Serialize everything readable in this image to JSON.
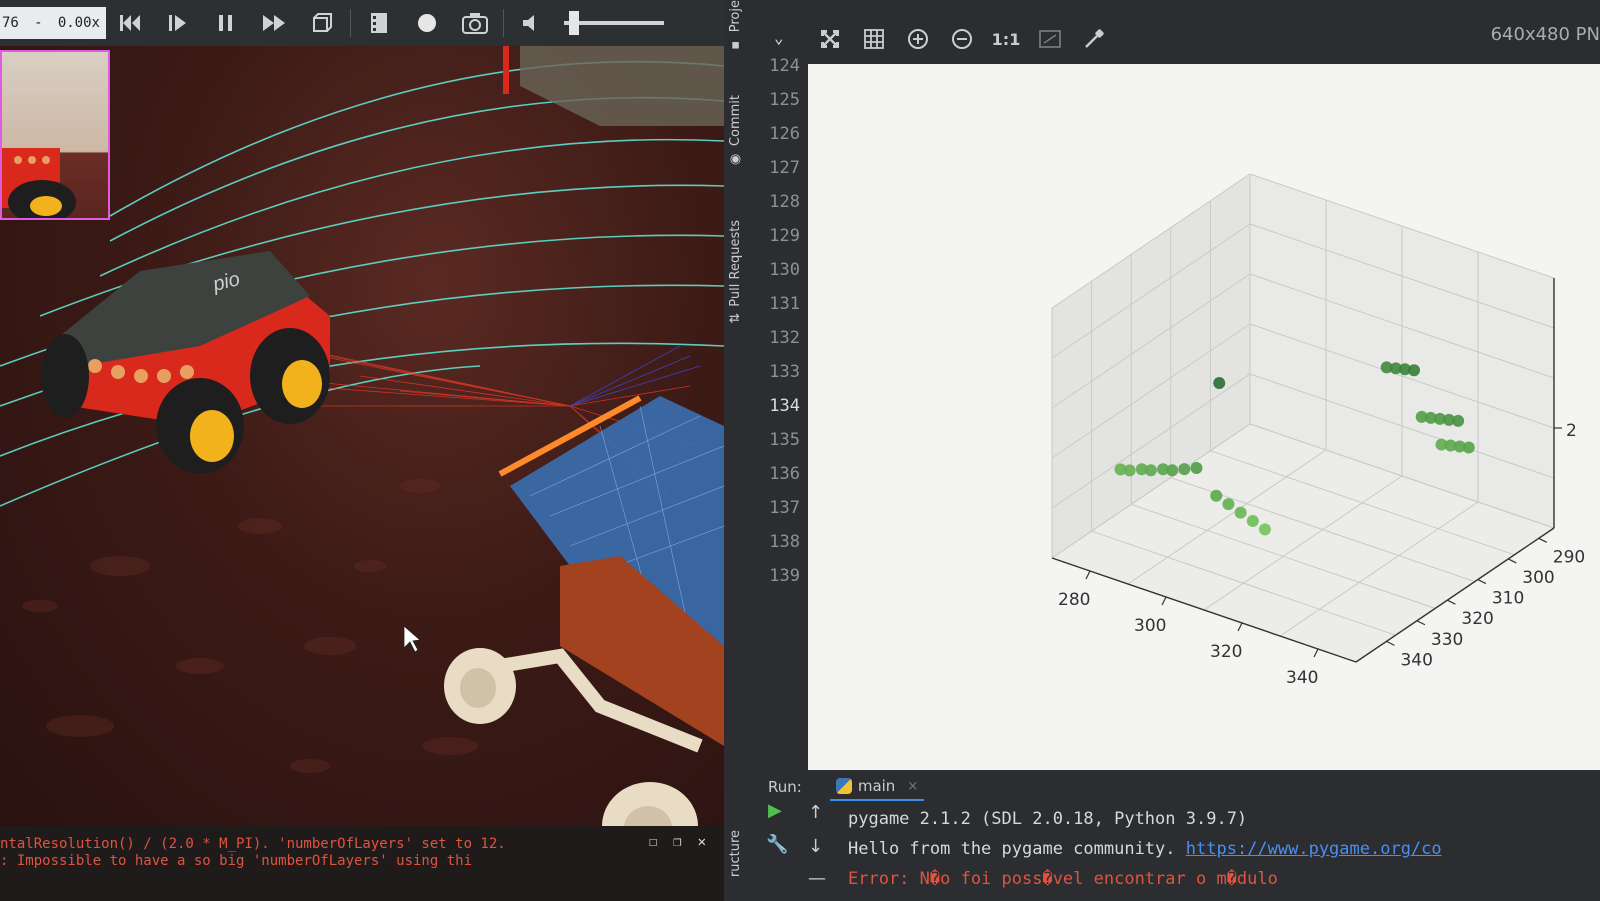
{
  "simulator": {
    "time_left": "76",
    "time_sep": "-",
    "speed": "0.00x",
    "toolbar_icons": [
      "step-back-icon",
      "step-icon",
      "pause-icon",
      "fast-forward-icon",
      "reset-view-icon",
      "record-movie-icon",
      "record-icon",
      "screenshot-icon",
      "mute-icon"
    ],
    "volume_level": 0.05,
    "robot_label": "pio",
    "console_lines": [
      "ntalResolution() / (2.0 * M_PI). 'numberOfLayers' set to 12.",
      ": Impossible to have a so big 'numberOfLayers' using thi"
    ]
  },
  "ide_strip": {
    "tabs": [
      "Proje",
      "Commit",
      "Pull Requests",
      "ructure"
    ]
  },
  "editor": {
    "line_numbers": [
      "124",
      "125",
      "126",
      "127",
      "128",
      "129",
      "130",
      "131",
      "132",
      "133",
      "134",
      "135",
      "136",
      "137",
      "138",
      "139"
    ],
    "active_line": "134"
  },
  "image_viewer": {
    "toolbar_icons": [
      "fit-screen-icon",
      "grid-icon",
      "zoom-in-icon",
      "zoom-out-icon",
      "actual-size-icon",
      "background-icon",
      "color-picker-icon"
    ],
    "actual_size_label": "1:1",
    "image_info": "640x480 PN"
  },
  "chart_data": {
    "type": "scatter",
    "projection": "3d",
    "x_ticks": [
      "280",
      "300",
      "320",
      "340"
    ],
    "y_ticks": [
      "290",
      "300",
      "310",
      "320",
      "330",
      "340"
    ],
    "z_ticks_partial": [
      "2"
    ],
    "grid": true,
    "series": [
      {
        "color_scale": "greens",
        "points": [
          {
            "x": 272,
            "y": 330,
            "z": 0.6
          },
          {
            "x": 276,
            "y": 332,
            "z": 0.7
          },
          {
            "x": 280,
            "y": 333,
            "z": 0.8
          },
          {
            "x": 284,
            "y": 335,
            "z": 0.9
          },
          {
            "x": 288,
            "y": 336,
            "z": 1.0
          },
          {
            "x": 292,
            "y": 338,
            "z": 1.1
          },
          {
            "x": 296,
            "y": 339,
            "z": 1.2
          },
          {
            "x": 300,
            "y": 340,
            "z": 1.3
          },
          {
            "x": 302,
            "y": 336,
            "z": 0.9
          },
          {
            "x": 302,
            "y": 332,
            "z": 0.7
          },
          {
            "x": 302,
            "y": 328,
            "z": 0.5
          },
          {
            "x": 302,
            "y": 324,
            "z": 0.3
          },
          {
            "x": 302,
            "y": 320,
            "z": 0.1
          },
          {
            "x": 318,
            "y": 300,
            "z": 1.8
          },
          {
            "x": 322,
            "y": 302,
            "z": 1.9
          },
          {
            "x": 326,
            "y": 304,
            "z": 2.0
          },
          {
            "x": 330,
            "y": 306,
            "z": 2.1
          },
          {
            "x": 324,
            "y": 296,
            "z": 1.2
          },
          {
            "x": 328,
            "y": 298,
            "z": 1.3
          },
          {
            "x": 332,
            "y": 300,
            "z": 1.4
          },
          {
            "x": 336,
            "y": 302,
            "z": 1.5
          },
          {
            "x": 340,
            "y": 304,
            "z": 1.6
          },
          {
            "x": 326,
            "y": 292,
            "z": 0.8
          },
          {
            "x": 330,
            "y": 294,
            "z": 0.9
          },
          {
            "x": 334,
            "y": 296,
            "z": 1.0
          },
          {
            "x": 338,
            "y": 298,
            "z": 1.1
          },
          {
            "x": 310,
            "y": 345,
            "z": 2.6
          }
        ]
      }
    ]
  },
  "run_panel": {
    "label": "Run:",
    "tab_name": "main",
    "close_glyph": "×",
    "output": {
      "line1": "pygame 2.1.2 (SDL 2.0.18, Python 3.9.7)",
      "line2_text": "Hello from the pygame community. ",
      "line2_link": "https://www.pygame.org/co",
      "line3": "Error: N�o foi poss�vel encontrar o m�dulo"
    }
  },
  "colors": {
    "accent": "#3d8ee6",
    "error": "#e0533f",
    "link": "#4a8ff0",
    "lidar_lines": "#5fe0d0"
  }
}
